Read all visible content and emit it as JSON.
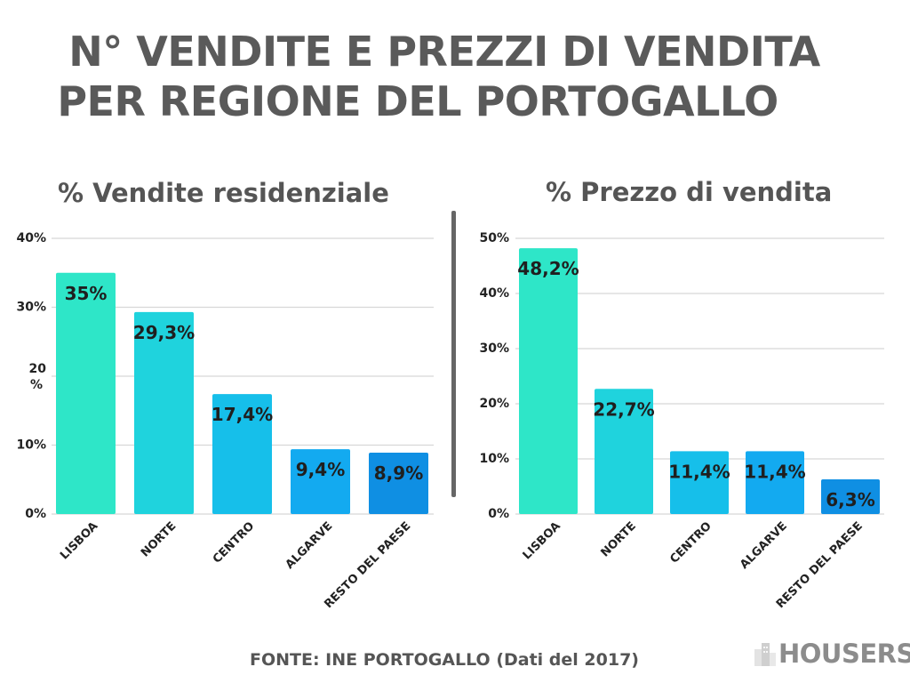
{
  "title": {
    "line1": "N° VENDITE E PREZZI DI VENDITA",
    "line2": "PER REGIONE DEL PORTOGALLO"
  },
  "source": "FONTE: INE PORTOGALLO (Dati del 2017)",
  "logo": {
    "text": "HOUSERS",
    "icon": "buildings-icon"
  },
  "colors": {
    "bars": [
      "#2ee6c8",
      "#1fd3dd",
      "#16bfea",
      "#13aaf0",
      "#0f8fe3"
    ],
    "grid": "#d8d8d8",
    "divider": "#666666"
  },
  "chart_data": [
    {
      "type": "bar",
      "title": "% Vendite residenziale",
      "categories": [
        "LISBOA",
        "NORTE",
        "CENTRO",
        "ALGARVE",
        "RESTO DEL PAESE"
      ],
      "values": [
        35,
        29.3,
        17.4,
        9.4,
        8.9
      ],
      "value_labels": [
        "35%",
        "29,3%",
        "17,4%",
        "9,4%",
        "8,9%"
      ],
      "ylim": [
        0,
        40
      ],
      "yticks": [
        0,
        10,
        20,
        30,
        40
      ],
      "ytick_labels": [
        "0%",
        "10%",
        "20\n%",
        "30%",
        "40%"
      ],
      "grid": true,
      "legend": "none"
    },
    {
      "type": "bar",
      "title": "% Prezzo di vendita",
      "categories": [
        "LISBOA",
        "NORTE",
        "CENTRO",
        "ALGARVE",
        "RESTO DEL PAESE"
      ],
      "values": [
        48.2,
        22.7,
        11.4,
        11.4,
        6.3
      ],
      "value_labels": [
        "48,2%",
        "22,7%",
        "11,4%",
        "11,4%",
        "6,3%"
      ],
      "ylim": [
        0,
        50
      ],
      "yticks": [
        0,
        10,
        20,
        30,
        40,
        50
      ],
      "ytick_labels": [
        "0%",
        "10%",
        "20%",
        "30%",
        "40%",
        "50%"
      ],
      "grid": true,
      "legend": "none"
    }
  ]
}
